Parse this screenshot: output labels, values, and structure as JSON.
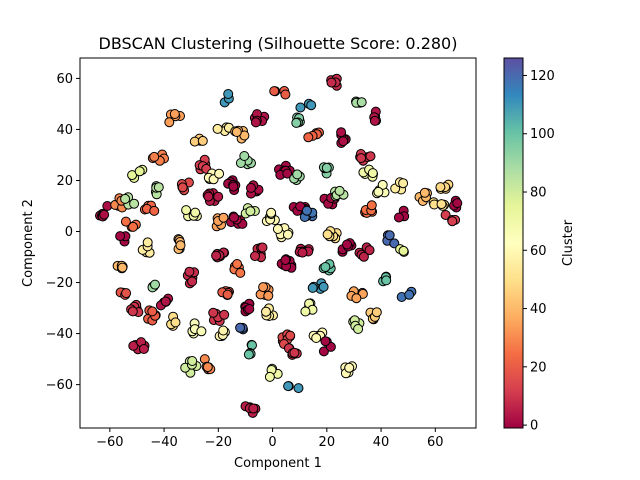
{
  "chart_data": {
    "type": "scatter",
    "title": "DBSCAN Clustering (Silhouette Score: 0.280)",
    "xlabel": "Component 1",
    "ylabel": "Component 2",
    "xlim": [
      -71,
      75
    ],
    "ylim": [
      -77,
      68
    ],
    "x_ticks": [
      -60,
      -40,
      -20,
      0,
      20,
      40,
      60
    ],
    "y_ticks": [
      -60,
      -40,
      -20,
      0,
      20,
      40,
      60
    ],
    "colorbar": {
      "label": "Cluster",
      "range": [
        -1,
        126
      ],
      "ticks": [
        0,
        20,
        40,
        60,
        80,
        100,
        120
      ],
      "colormap": "Spectral",
      "colors": [
        "#9e0142",
        "#d53e4f",
        "#f46d43",
        "#fdae61",
        "#fee08b",
        "#ffffbf",
        "#e6f598",
        "#abdda4",
        "#66c2a5",
        "#3288bd",
        "#5e4fa2"
      ]
    },
    "marker": {
      "edge_color": "#000000",
      "shape": "circle"
    },
    "clusters": [
      {
        "id": 2,
        "x": -62,
        "y": 8,
        "n": 6
      },
      {
        "id": 30,
        "x": -57,
        "y": 11,
        "n": 5
      },
      {
        "id": 85,
        "x": -53,
        "y": 12,
        "n": 4
      },
      {
        "id": 0,
        "x": -55,
        "y": -3,
        "n": 3
      },
      {
        "id": 25,
        "x": -52,
        "y": 3,
        "n": 4
      },
      {
        "id": 40,
        "x": -55,
        "y": -13,
        "n": 5
      },
      {
        "id": 18,
        "x": -54,
        "y": -25,
        "n": 4
      },
      {
        "id": 10,
        "x": -50,
        "y": -30,
        "n": 6
      },
      {
        "id": 5,
        "x": -49,
        "y": -45,
        "n": 6
      },
      {
        "id": 20,
        "x": -45,
        "y": -33,
        "n": 6
      },
      {
        "id": 75,
        "x": -50,
        "y": 23,
        "n": 4
      },
      {
        "id": 22,
        "x": -45,
        "y": 8,
        "n": 5
      },
      {
        "id": 55,
        "x": -46,
        "y": -6,
        "n": 5
      },
      {
        "id": 90,
        "x": -43,
        "y": -20,
        "n": 4
      },
      {
        "id": 85,
        "x": -42,
        "y": 16,
        "n": 5
      },
      {
        "id": 28,
        "x": -42,
        "y": 29,
        "n": 5
      },
      {
        "id": 3,
        "x": -40,
        "y": -28,
        "n": 5
      },
      {
        "id": 50,
        "x": -37,
        "y": -35,
        "n": 4
      },
      {
        "id": 34,
        "x": -36,
        "y": 44,
        "n": 5
      },
      {
        "id": 40,
        "x": -34,
        "y": -5,
        "n": 6
      },
      {
        "id": 15,
        "x": -32,
        "y": 18,
        "n": 6
      },
      {
        "id": 70,
        "x": -30,
        "y": 7,
        "n": 5
      },
      {
        "id": 8,
        "x": -30,
        "y": -18,
        "n": 6
      },
      {
        "id": 65,
        "x": -28,
        "y": -38,
        "n": 5
      },
      {
        "id": 80,
        "x": -30,
        "y": -53,
        "n": 6
      },
      {
        "id": 30,
        "x": -24,
        "y": -52,
        "n": 6
      },
      {
        "id": 45,
        "x": -27,
        "y": 35,
        "n": 4
      },
      {
        "id": 12,
        "x": -25,
        "y": 26,
        "n": 6
      },
      {
        "id": 60,
        "x": -22,
        "y": 22,
        "n": 5
      },
      {
        "id": 4,
        "x": -22,
        "y": 14,
        "n": 7
      },
      {
        "id": 35,
        "x": -20,
        "y": 4,
        "n": 6
      },
      {
        "id": 6,
        "x": -20,
        "y": -8,
        "n": 7
      },
      {
        "id": 20,
        "x": -18,
        "y": -24,
        "n": 6
      },
      {
        "id": 10,
        "x": -20,
        "y": -33,
        "n": 6
      },
      {
        "id": 58,
        "x": -18,
        "y": -40,
        "n": 5
      },
      {
        "id": 55,
        "x": -18,
        "y": 40,
        "n": 5
      },
      {
        "id": 110,
        "x": -17,
        "y": 52,
        "n": 3
      },
      {
        "id": 0,
        "x": -15,
        "y": 18,
        "n": 8
      },
      {
        "id": 1,
        "x": -13,
        "y": 4,
        "n": 7
      },
      {
        "id": 26,
        "x": -12,
        "y": -14,
        "n": 6
      },
      {
        "id": 40,
        "x": -12,
        "y": 38,
        "n": 6
      },
      {
        "id": 90,
        "x": -10,
        "y": 28,
        "n": 5
      },
      {
        "id": 0,
        "x": -10,
        "y": -30,
        "n": 7
      },
      {
        "id": 100,
        "x": -8,
        "y": -46,
        "n": 5
      },
      {
        "id": 120,
        "x": -11,
        "y": -37,
        "n": 3
      },
      {
        "id": 5,
        "x": -8,
        "y": -69,
        "n": 6
      },
      {
        "id": 80,
        "x": -8,
        "y": 8,
        "n": 5
      },
      {
        "id": 2,
        "x": -6,
        "y": 16,
        "n": 7
      },
      {
        "id": 3,
        "x": -5,
        "y": 44,
        "n": 6
      },
      {
        "id": 8,
        "x": -5,
        "y": -8,
        "n": 7
      },
      {
        "id": 33,
        "x": -3,
        "y": -24,
        "n": 6
      },
      {
        "id": 60,
        "x": -1,
        "y": 6,
        "n": 6
      },
      {
        "id": 55,
        "x": -1,
        "y": -32,
        "n": 5
      },
      {
        "id": 70,
        "x": 0,
        "y": -55,
        "n": 4
      },
      {
        "id": 20,
        "x": 3,
        "y": 55,
        "n": 4
      },
      {
        "id": 0,
        "x": 4,
        "y": 24,
        "n": 7
      },
      {
        "id": 60,
        "x": 4,
        "y": 0,
        "n": 8
      },
      {
        "id": 0,
        "x": 5,
        "y": -13,
        "n": 8
      },
      {
        "id": 15,
        "x": 5,
        "y": -42,
        "n": 7
      },
      {
        "id": 10,
        "x": 7,
        "y": -47,
        "n": 6
      },
      {
        "id": 110,
        "x": 8,
        "y": -60,
        "n": 3
      },
      {
        "id": 95,
        "x": 9,
        "y": 44,
        "n": 5
      },
      {
        "id": 90,
        "x": 9,
        "y": 22,
        "n": 5
      },
      {
        "id": 0,
        "x": 10,
        "y": 10,
        "n": 7
      },
      {
        "id": 118,
        "x": 13,
        "y": 6,
        "n": 5
      },
      {
        "id": 5,
        "x": 12,
        "y": -8,
        "n": 7
      },
      {
        "id": 70,
        "x": 14,
        "y": -30,
        "n": 6
      },
      {
        "id": 110,
        "x": 12,
        "y": 49,
        "n": 3
      },
      {
        "id": 22,
        "x": 15,
        "y": 38,
        "n": 5
      },
      {
        "id": 110,
        "x": 17,
        "y": -22,
        "n": 5
      },
      {
        "id": 60,
        "x": 17,
        "y": -40,
        "n": 5
      },
      {
        "id": 95,
        "x": 20,
        "y": 25,
        "n": 6
      },
      {
        "id": 1,
        "x": 21,
        "y": 12,
        "n": 7
      },
      {
        "id": 50,
        "x": 22,
        "y": -2,
        "n": 6
      },
      {
        "id": 100,
        "x": 20,
        "y": -14,
        "n": 5
      },
      {
        "id": 0,
        "x": 20,
        "y": -45,
        "n": 4
      },
      {
        "id": 8,
        "x": 23,
        "y": 58,
        "n": 6
      },
      {
        "id": 2,
        "x": 25,
        "y": 37,
        "n": 6
      },
      {
        "id": 85,
        "x": 25,
        "y": 15,
        "n": 6
      },
      {
        "id": 0,
        "x": 27,
        "y": -6,
        "n": 6
      },
      {
        "id": 60,
        "x": 28,
        "y": -54,
        "n": 5
      },
      {
        "id": 80,
        "x": 30,
        "y": -37,
        "n": 5
      },
      {
        "id": 35,
        "x": 31,
        "y": -24,
        "n": 5
      },
      {
        "id": 88,
        "x": 32,
        "y": 51,
        "n": 5
      },
      {
        "id": 10,
        "x": 34,
        "y": 30,
        "n": 6
      },
      {
        "id": 70,
        "x": 35,
        "y": 22,
        "n": 6
      },
      {
        "id": 25,
        "x": 36,
        "y": 8,
        "n": 6
      },
      {
        "id": 6,
        "x": 34,
        "y": -8,
        "n": 5
      },
      {
        "id": 45,
        "x": 38,
        "y": -33,
        "n": 5
      },
      {
        "id": 100,
        "x": 40,
        "y": -18,
        "n": 4
      },
      {
        "id": 3,
        "x": 39,
        "y": 45,
        "n": 5
      },
      {
        "id": 65,
        "x": 40,
        "y": 16,
        "n": 5
      },
      {
        "id": 120,
        "x": 44,
        "y": -3,
        "n": 4
      },
      {
        "id": 55,
        "x": 47,
        "y": 18,
        "n": 4
      },
      {
        "id": 75,
        "x": 47,
        "y": -7,
        "n": 3
      },
      {
        "id": 118,
        "x": 49,
        "y": -24,
        "n": 3
      },
      {
        "id": 0,
        "x": 47,
        "y": 7,
        "n": 3
      },
      {
        "id": 40,
        "x": 56,
        "y": 13,
        "n": 5
      },
      {
        "id": 50,
        "x": 61,
        "y": 10,
        "n": 5
      },
      {
        "id": 48,
        "x": 64,
        "y": 18,
        "n": 5
      },
      {
        "id": 0,
        "x": 68,
        "y": 10,
        "n": 4
      },
      {
        "id": 12,
        "x": 65,
        "y": 5,
        "n": 4
      }
    ]
  }
}
